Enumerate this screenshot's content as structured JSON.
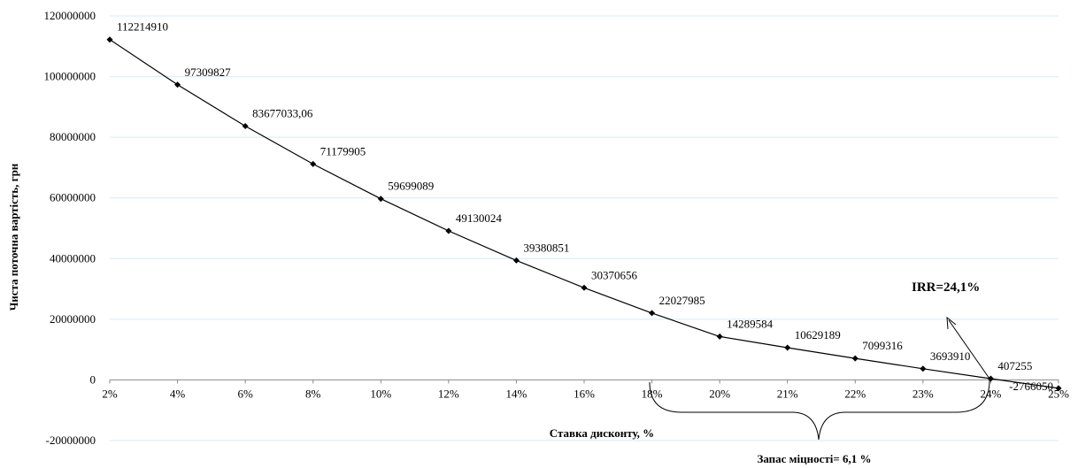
{
  "chart_data": {
    "type": "line",
    "categories": [
      "2%",
      "4%",
      "6%",
      "8%",
      "10%",
      "12%",
      "14%",
      "16%",
      "18%",
      "20%",
      "21%",
      "22%",
      "23%",
      "24%",
      "25%"
    ],
    "values": [
      112214910,
      97309827,
      83677033.06,
      71179905,
      59699089,
      49130024,
      39380851,
      30370656,
      22027985,
      14289584,
      10629189,
      7099316,
      3693910,
      407255,
      -2766050
    ],
    "data_labels": [
      "112214910",
      "97309827",
      "83677033,06",
      "71179905",
      "59699089",
      "49130024",
      "39380851",
      "30370656",
      "22027985",
      "14289584",
      "10629189",
      "7099316",
      "3693910",
      "407255",
      "-2766050"
    ],
    "yticks": [
      -20000000,
      0,
      20000000,
      40000000,
      60000000,
      80000000,
      100000000,
      120000000
    ],
    "ytick_labels": [
      "-20000000",
      "0",
      "20000000",
      "40000000",
      "60000000",
      "80000000",
      "100000000",
      "120000000"
    ],
    "ylim": [
      -20000000,
      120000000
    ],
    "xlabel": "Ставка дисконту, %",
    "ylabel": "Чиста поточна вартість, грн",
    "grid": true,
    "line_color": "#000000",
    "grid_color": "#d4ecf4",
    "annotations": {
      "irr": "IRR=24,1%",
      "margin": "Запас міцності=  6,1 %"
    }
  }
}
